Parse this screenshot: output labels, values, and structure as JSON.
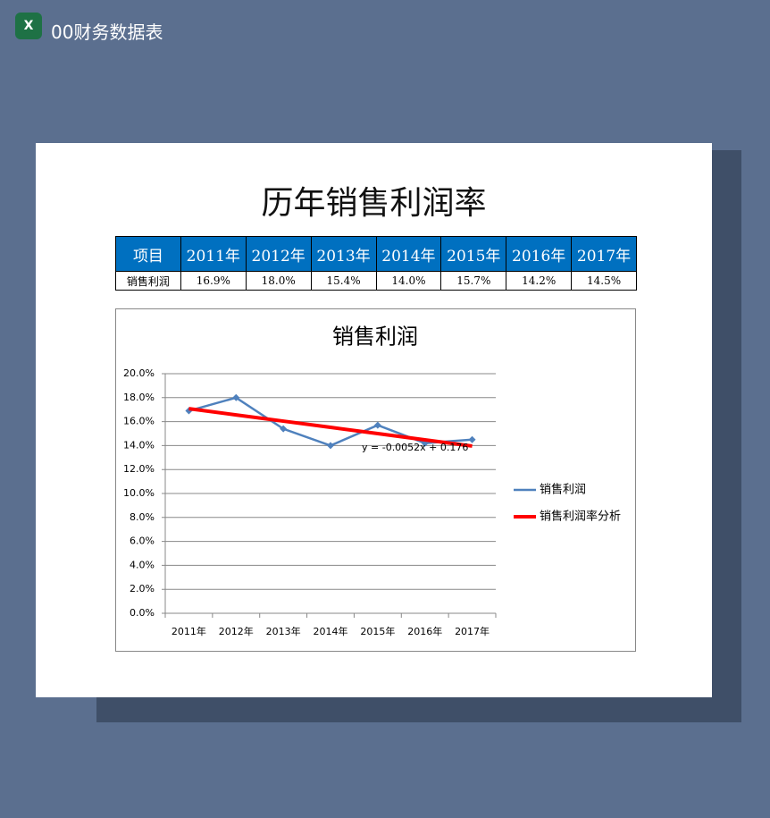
{
  "header": {
    "title": "00财务数据表"
  },
  "document": {
    "title": "历年销售利润率"
  },
  "table": {
    "header": [
      "项目",
      "2011年",
      "2012年",
      "2013年",
      "2014年",
      "2015年",
      "2016年",
      "2017年"
    ],
    "rows": [
      [
        "销售利润",
        "16.9%",
        "18.0%",
        "15.4%",
        "14.0%",
        "15.7%",
        "14.2%",
        "14.5%"
      ]
    ]
  },
  "chart_data": {
    "type": "line",
    "title": "销售利润",
    "categories": [
      "2011年",
      "2012年",
      "2013年",
      "2014年",
      "2015年",
      "2016年",
      "2017年"
    ],
    "series": [
      {
        "name": "销售利润",
        "color": "#4f81bd",
        "values": [
          16.9,
          18.0,
          15.4,
          14.0,
          15.7,
          14.2,
          14.5
        ]
      },
      {
        "name": "销售利润率分析",
        "color": "#ff0000",
        "values": [
          17.08,
          16.56,
          16.04,
          15.52,
          15.0,
          14.48,
          13.96
        ]
      }
    ],
    "ylim": [
      0,
      20
    ],
    "yticks": [
      {
        "value": 0,
        "label": "0.0%"
      },
      {
        "value": 2,
        "label": "2.0%"
      },
      {
        "value": 4,
        "label": "4.0%"
      },
      {
        "value": 6,
        "label": "6.0%"
      },
      {
        "value": 8,
        "label": "8.0%"
      },
      {
        "value": 10,
        "label": "10.0%"
      },
      {
        "value": 12,
        "label": "12.0%"
      },
      {
        "value": 14,
        "label": "14.0%"
      },
      {
        "value": 16,
        "label": "16.0%"
      },
      {
        "value": 18,
        "label": "18.0%"
      },
      {
        "value": 20,
        "label": "20.0%"
      }
    ],
    "grid": true,
    "legend": "right",
    "annotations": [
      {
        "text": "y = -0.0052x + 0.176"
      }
    ]
  }
}
